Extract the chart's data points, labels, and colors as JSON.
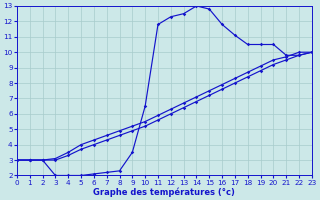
{
  "title": "Graphe des températures (°c)",
  "bg_color": "#cce8e8",
  "grid_color": "#a8cccc",
  "line_color": "#1414cc",
  "xlim": [
    0,
    23
  ],
  "ylim": [
    2,
    13
  ],
  "xtick_min": 0,
  "xtick_max": 23,
  "yticks": [
    2,
    3,
    4,
    5,
    6,
    7,
    8,
    9,
    10,
    11,
    12,
    13
  ],
  "line_A_x": [
    0,
    1,
    2,
    3,
    4,
    5,
    6,
    7,
    8,
    9,
    10,
    11,
    12,
    13,
    14,
    15,
    16,
    17,
    18,
    19,
    20,
    21,
    22,
    23
  ],
  "line_A_y": [
    3.0,
    3.0,
    3.0,
    3.1,
    3.5,
    4.0,
    4.3,
    4.6,
    4.9,
    5.2,
    5.5,
    5.9,
    6.3,
    6.7,
    7.1,
    7.5,
    7.9,
    8.3,
    8.7,
    9.1,
    9.5,
    9.7,
    10.0,
    10.0
  ],
  "line_B_x": [
    0,
    1,
    2,
    3,
    4,
    5,
    6,
    7,
    8,
    9,
    10,
    11,
    12,
    13,
    14,
    15,
    16,
    17,
    18,
    19,
    20,
    21,
    22,
    23
  ],
  "line_B_y": [
    3.0,
    3.0,
    3.0,
    3.0,
    3.3,
    3.7,
    4.0,
    4.3,
    4.6,
    4.9,
    5.2,
    5.6,
    6.0,
    6.4,
    6.8,
    7.2,
    7.6,
    8.0,
    8.4,
    8.8,
    9.2,
    9.5,
    9.8,
    10.0
  ],
  "line_C_x": [
    0,
    1,
    2,
    3,
    4,
    5,
    6,
    7,
    8,
    9,
    10,
    11,
    12,
    13,
    14,
    15,
    16,
    17,
    18,
    19,
    20,
    21,
    22,
    23
  ],
  "line_C_y": [
    3.0,
    3.0,
    3.0,
    2.0,
    2.0,
    2.0,
    2.1,
    2.2,
    2.3,
    3.5,
    6.5,
    11.8,
    12.3,
    12.5,
    13.0,
    12.8,
    11.8,
    11.1,
    10.5,
    10.5,
    10.5,
    9.8,
    9.8,
    10.0
  ],
  "marker": "D",
  "marker_size": 1.8,
  "linewidth": 0.85,
  "tick_fontsize": 5.2,
  "label_fontsize": 6.0,
  "label_fontweight": "bold"
}
